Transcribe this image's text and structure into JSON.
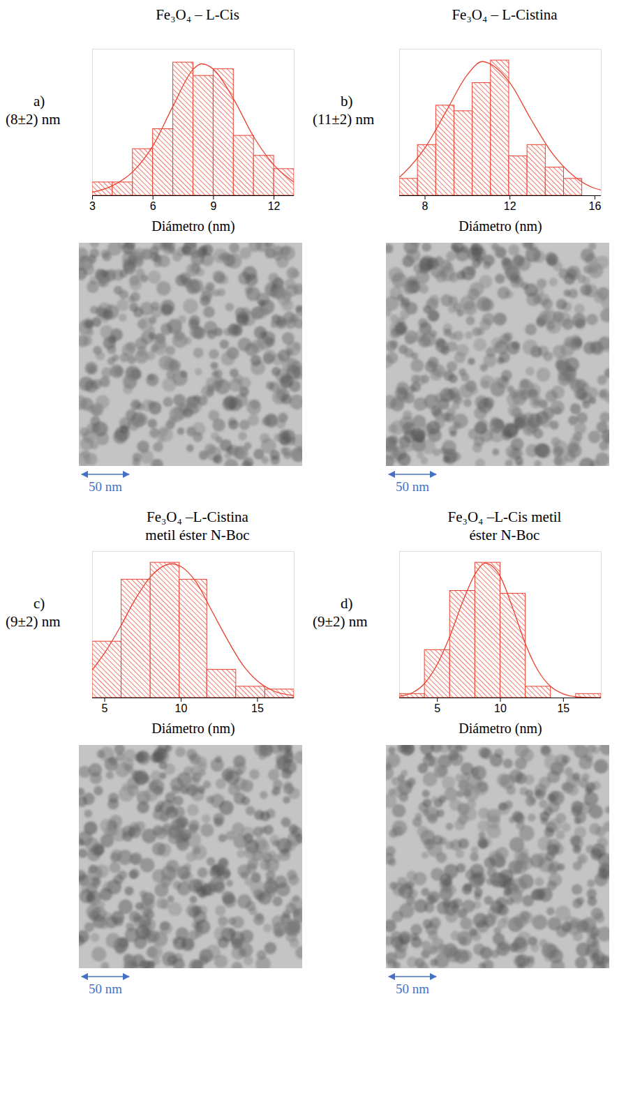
{
  "chart_data": [
    {
      "type": "histogram",
      "panel": "a)",
      "title": "Fe₃O₄ – L-Cis",
      "annotation": "(8±2) nm",
      "x_label": "Diámetro (nm)",
      "bins": [
        3,
        4,
        5,
        6,
        7,
        8,
        9,
        10,
        11,
        12,
        13
      ],
      "values": [
        2,
        2,
        7,
        10,
        20,
        18,
        19,
        9,
        6,
        4
      ],
      "fit": {
        "type": "line",
        "x": [
          3,
          4,
          5,
          6,
          7,
          8,
          8.4,
          9,
          10,
          11,
          12,
          13
        ],
        "values": [
          0.5,
          1.5,
          3.6,
          7.5,
          13.5,
          19,
          19.8,
          19,
          14.5,
          8.8,
          4.6,
          2
        ],
        "color": "#e8412f"
      },
      "xlim": [
        3,
        13
      ],
      "xticks": [
        3,
        6,
        9,
        12
      ],
      "ylim": [
        0,
        22
      ],
      "color": "#e8412f",
      "tick_labels": "x",
      "scale_bar": "50 nm"
    },
    {
      "type": "histogram",
      "panel": "b)",
      "title": "Fe₃O₄ – L-Cistina",
      "annotation": "(11±2) nm",
      "x_label": "Diámetro (nm)",
      "bins": [
        6.8,
        7.66,
        8.52,
        9.38,
        10.24,
        11.1,
        11.96,
        12.82,
        13.68,
        14.54,
        15.4
      ],
      "values": [
        3,
        9,
        16,
        15,
        20,
        24,
        7,
        9,
        5,
        3
      ],
      "fit": {
        "type": "line",
        "x": [
          6.8,
          7,
          8,
          9,
          10,
          10.7,
          11,
          12,
          13,
          14,
          15,
          16,
          16.3
        ],
        "values": [
          3.3,
          4,
          8.5,
          15,
          21.5,
          23.8,
          23.5,
          20,
          13.5,
          7.5,
          3.5,
          1.3,
          1
        ],
        "color": "#e8412f"
      },
      "xlim": [
        6.8,
        16.3
      ],
      "xticks": [
        8,
        12,
        16
      ],
      "ylim": [
        0,
        26
      ],
      "color": "#e8412f",
      "tick_labels": "x",
      "scale_bar": "50 nm"
    },
    {
      "type": "histogram",
      "panel": "c)",
      "title": "Fe₃O₄ –L-Cistina metil éster N-Boc",
      "annotation": "(9±2) nm",
      "x_label": "Diámetro (nm)",
      "bins": [
        4.2,
        6.1,
        8.0,
        9.9,
        11.7,
        13.6,
        15.5,
        17.4
      ],
      "values": [
        10,
        21,
        24,
        21,
        5,
        2,
        1.5
      ],
      "fit": {
        "type": "line",
        "x": [
          4.2,
          5,
          6,
          7,
          8,
          9.4,
          10,
          11,
          12,
          13,
          14,
          15,
          16,
          17.4
        ],
        "values": [
          5,
          8,
          12.5,
          17.5,
          21.5,
          23.8,
          23.3,
          20.5,
          15.5,
          10.5,
          6,
          3,
          1.3,
          0.4
        ],
        "color": "#e8412f"
      },
      "xlim": [
        4.2,
        17.4
      ],
      "xticks": [
        5,
        10,
        15
      ],
      "ylim": [
        0,
        26
      ],
      "color": "#e8412f",
      "tick_labels": "x",
      "scale_bar": "50 nm"
    },
    {
      "type": "histogram",
      "panel": "d)",
      "title": "Fe₃O₄ –L-Cis metil éster N-Boc",
      "annotation": "(9±2) nm",
      "x_label": "Diámetro (nm)",
      "bins": [
        2,
        4,
        6,
        8,
        10,
        12,
        14,
        16,
        18
      ],
      "values": [
        0.7,
        8.5,
        19,
        24,
        18.5,
        2,
        0,
        0.7
      ],
      "fit": {
        "type": "line",
        "x": [
          2,
          3,
          4,
          5,
          6,
          7,
          8,
          8.8,
          10,
          11,
          12,
          13,
          14,
          15,
          16,
          18
        ],
        "values": [
          0.3,
          0.9,
          2.6,
          6,
          11,
          17,
          22,
          23.9,
          21.5,
          15.8,
          9.5,
          4.8,
          2,
          0.7,
          0.2,
          0
        ],
        "color": "#e8412f"
      },
      "xlim": [
        2,
        18
      ],
      "xticks": [
        5,
        10,
        15
      ],
      "ylim": [
        0,
        26
      ],
      "color": "#e8412f",
      "tick_labels": "x",
      "scale_bar": "50 nm"
    }
  ]
}
